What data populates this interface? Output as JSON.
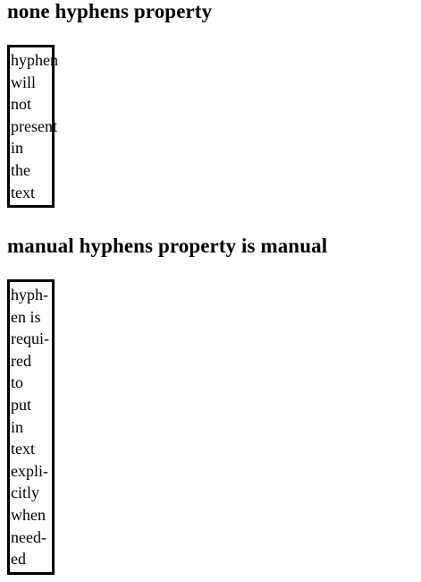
{
  "sections": [
    {
      "heading": "none hyphens property",
      "lines": [
        "hyphen",
        "will",
        "not",
        "present",
        "in",
        "the",
        "text"
      ]
    },
    {
      "heading": "manual hyphens property is manual",
      "lines": [
        "hyph-",
        "en is",
        "requi-",
        "red",
        "to",
        "put",
        "in",
        "text",
        "expli-",
        "citly",
        "when",
        "need-",
        "ed"
      ]
    }
  ]
}
